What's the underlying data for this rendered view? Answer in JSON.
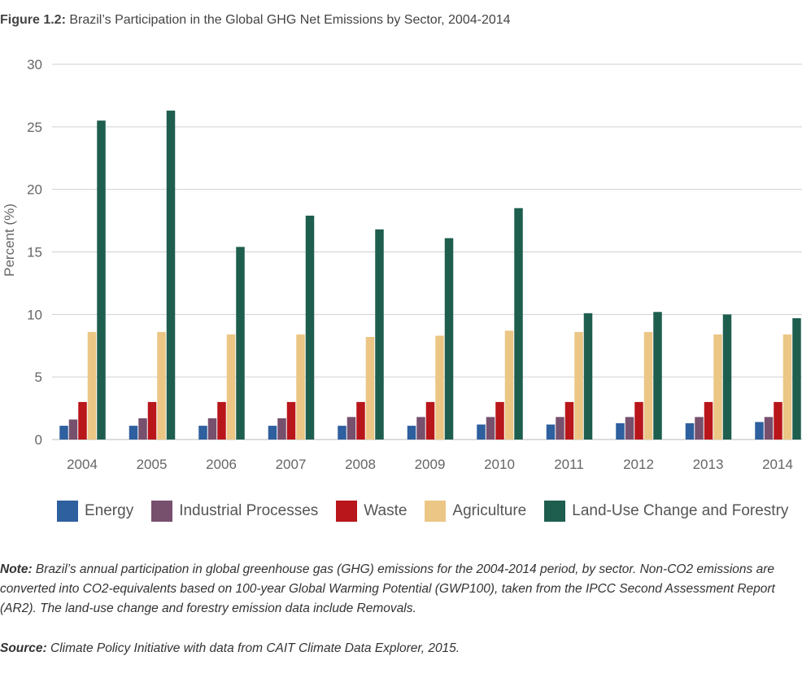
{
  "figure": {
    "title_label": "Figure 1.2:",
    "title_text": " Brazil’s Participation in the Global GHG Net Emissions by Sector, 2004-2014"
  },
  "note": {
    "label": "Note:",
    "text": " Brazil’s annual participation in global greenhouse gas (GHG) emissions for the 2004-2014 period, by sector. Non-CO2 emissions are converted into CO2-equivalents based on 100-year Global Warming Potential (GWP100), taken from the IPCC Second Assessment Report (AR2). The land-use change and forestry emission data include Removals."
  },
  "source": {
    "label": "Source:",
    "text": " Climate Policy Initiative with data from CAIT Climate Data Explorer, 2015."
  },
  "chart_data": {
    "type": "bar",
    "title": "",
    "xlabel": "",
    "ylabel": "Percent (%)",
    "ylim": [
      0,
      30
    ],
    "yticks": [
      0,
      5,
      10,
      15,
      20,
      25,
      30
    ],
    "grid": true,
    "legend_position": "bottom",
    "categories": [
      "2004",
      "2005",
      "2006",
      "2007",
      "2008",
      "2009",
      "2010",
      "2011",
      "2012",
      "2013",
      "2014"
    ],
    "series": [
      {
        "name": "Energy",
        "color": "#2e5f9e",
        "values": [
          1.1,
          1.1,
          1.1,
          1.1,
          1.1,
          1.1,
          1.2,
          1.2,
          1.3,
          1.3,
          1.4
        ]
      },
      {
        "name": "Industrial Processes",
        "color": "#77506e",
        "values": [
          1.6,
          1.7,
          1.7,
          1.7,
          1.8,
          1.8,
          1.8,
          1.8,
          1.8,
          1.8,
          1.8
        ]
      },
      {
        "name": "Waste",
        "color": "#b8161b",
        "values": [
          3.0,
          3.0,
          3.0,
          3.0,
          3.0,
          3.0,
          3.0,
          3.0,
          3.0,
          3.0,
          3.0
        ]
      },
      {
        "name": "Agriculture",
        "color": "#ebc685",
        "values": [
          8.6,
          8.6,
          8.4,
          8.4,
          8.2,
          8.3,
          8.7,
          8.6,
          8.6,
          8.4,
          8.4
        ]
      },
      {
        "name": "Land-Use Change and Forestry",
        "color": "#1e5e4f",
        "values": [
          25.5,
          26.3,
          15.4,
          17.9,
          16.8,
          16.1,
          18.5,
          10.1,
          10.2,
          10.0,
          9.7
        ]
      }
    ]
  }
}
